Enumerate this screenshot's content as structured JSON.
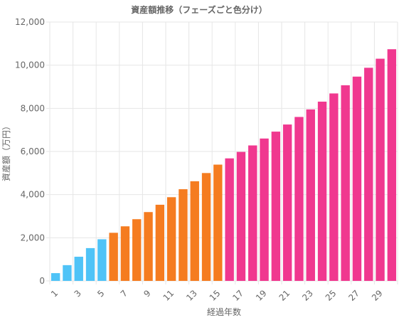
{
  "chart_data": {
    "type": "bar",
    "title": "資産額推移（フェーズごと色分け）",
    "xlabel": "経過年数",
    "ylabel": "資産額（万円）",
    "ylim": [
      0,
      12000
    ],
    "y_ticks": [
      "0",
      "2,000",
      "4,000",
      "6,000",
      "8,000",
      "10,000",
      "12,000"
    ],
    "categories": [
      "1",
      "2",
      "3",
      "4",
      "5",
      "6",
      "7",
      "8",
      "9",
      "10",
      "11",
      "12",
      "13",
      "14",
      "15",
      "16",
      "17",
      "18",
      "19",
      "20",
      "21",
      "22",
      "23",
      "24",
      "25",
      "26",
      "27",
      "28",
      "29",
      "30"
    ],
    "x_tick_labels_shown": [
      "1",
      "3",
      "5",
      "7",
      "9",
      "11",
      "13",
      "15",
      "17",
      "19",
      "21",
      "23",
      "25",
      "27",
      "29"
    ],
    "values": [
      360,
      730,
      1120,
      1520,
      1930,
      2230,
      2530,
      2860,
      3190,
      3530,
      3880,
      4250,
      4620,
      5000,
      5390,
      5680,
      5980,
      6280,
      6600,
      6920,
      7250,
      7600,
      7950,
      8310,
      8690,
      9070,
      9470,
      9880,
      10300,
      10740
    ],
    "bar_colors": [
      "#4fc3f7",
      "#4fc3f7",
      "#4fc3f7",
      "#4fc3f7",
      "#4fc3f7",
      "#f57c20",
      "#f57c20",
      "#f57c20",
      "#f57c20",
      "#f57c20",
      "#f57c20",
      "#f57c20",
      "#f57c20",
      "#f57c20",
      "#f57c20",
      "#f0388f",
      "#f0388f",
      "#f0388f",
      "#f0388f",
      "#f0388f",
      "#f0388f",
      "#f0388f",
      "#f0388f",
      "#f0388f",
      "#f0388f",
      "#f0388f",
      "#f0388f",
      "#f0388f",
      "#f0388f",
      "#f0388f"
    ],
    "grid": true,
    "legend": "none"
  }
}
